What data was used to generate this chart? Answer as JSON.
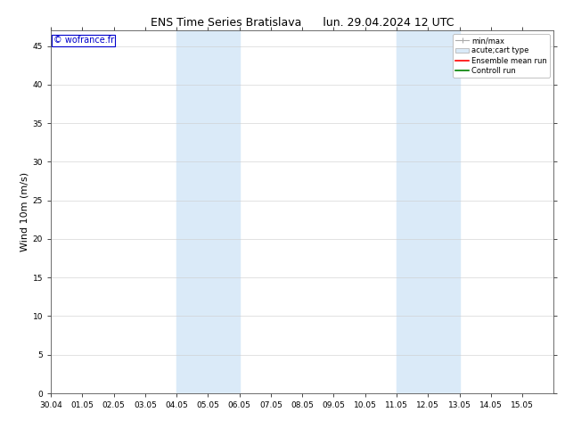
{
  "title_left": "ENS Time Series Bratislava",
  "title_right": "lun. 29.04.2024 12 UTC",
  "ylabel": "Wind 10m (m/s)",
  "watermark": "© wofrance.fr",
  "xlim": [
    0,
    16
  ],
  "ylim": [
    0,
    47
  ],
  "yticks": [
    0,
    5,
    10,
    15,
    20,
    25,
    30,
    35,
    40,
    45
  ],
  "xtick_labels": [
    "30.04",
    "01.05",
    "02.05",
    "03.05",
    "04.05",
    "05.05",
    "06.05",
    "07.05",
    "08.05",
    "09.05",
    "10.05",
    "11.05",
    "12.05",
    "13.05",
    "14.05",
    "15.05"
  ],
  "xtick_positions": [
    0,
    1,
    2,
    3,
    4,
    5,
    6,
    7,
    8,
    9,
    10,
    11,
    12,
    13,
    14,
    15
  ],
  "shaded_regions": [
    {
      "xmin": 4.0,
      "xmax": 6.0,
      "color": "#daeaf8"
    },
    {
      "xmin": 11.0,
      "xmax": 13.0,
      "color": "#daeaf8"
    }
  ],
  "bg_color": "#ffffff",
  "plot_bg_color": "#ffffff",
  "title_fontsize": 9,
  "tick_fontsize": 6.5,
  "ylabel_fontsize": 8,
  "watermark_color": "#0000cc",
  "watermark_fontsize": 7
}
